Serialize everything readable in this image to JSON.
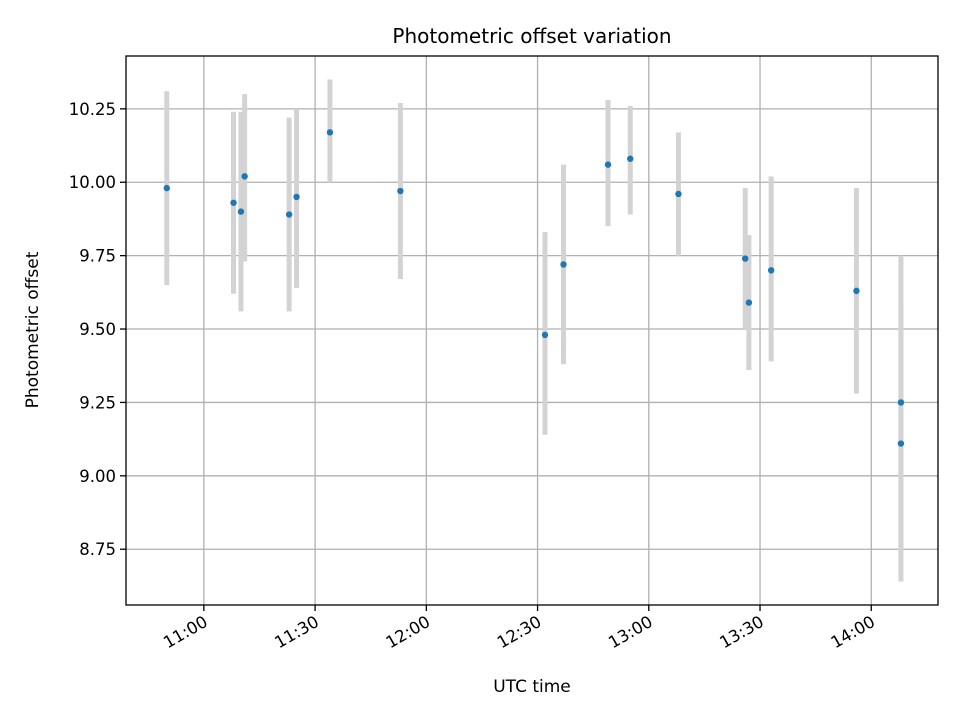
{
  "chart_data": {
    "type": "scatter",
    "title": "Photometric offset variation",
    "xlabel": "UTC time",
    "ylabel": "Photometric offset",
    "x_ticks": [
      "11:00",
      "11:30",
      "12:00",
      "12:30",
      "13:00",
      "13:30",
      "14:00"
    ],
    "y_ticks": [
      "8.75",
      "9.00",
      "9.25",
      "9.50",
      "9.75",
      "10.00",
      "10.25"
    ],
    "xlim": [
      "10:39",
      "14:18"
    ],
    "ylim": [
      8.56,
      10.43
    ],
    "grid": true,
    "colors": {
      "point": "#1f77b4",
      "errorbar": "#d3d3d3",
      "grid": "#b0b0b0"
    },
    "points": [
      {
        "x": "10:50",
        "y": 9.98,
        "ylow": 9.65,
        "yhigh": 10.31
      },
      {
        "x": "11:08",
        "y": 9.93,
        "ylow": 9.62,
        "yhigh": 10.24
      },
      {
        "x": "11:10",
        "y": 9.9,
        "ylow": 9.56,
        "yhigh": 10.24
      },
      {
        "x": "11:11",
        "y": 10.02,
        "ylow": 9.73,
        "yhigh": 10.3
      },
      {
        "x": "11:23",
        "y": 9.89,
        "ylow": 9.56,
        "yhigh": 10.22
      },
      {
        "x": "11:25",
        "y": 9.95,
        "ylow": 9.64,
        "yhigh": 10.25
      },
      {
        "x": "11:34",
        "y": 10.17,
        "ylow": 10.0,
        "yhigh": 10.35
      },
      {
        "x": "11:53",
        "y": 9.97,
        "ylow": 9.67,
        "yhigh": 10.27
      },
      {
        "x": "12:32",
        "y": 9.48,
        "ylow": 9.14,
        "yhigh": 9.83
      },
      {
        "x": "12:37",
        "y": 9.72,
        "ylow": 9.38,
        "yhigh": 10.06
      },
      {
        "x": "12:49",
        "y": 10.06,
        "ylow": 9.85,
        "yhigh": 10.28
      },
      {
        "x": "12:55",
        "y": 10.08,
        "ylow": 9.89,
        "yhigh": 10.26
      },
      {
        "x": "13:08",
        "y": 9.96,
        "ylow": 9.75,
        "yhigh": 10.17
      },
      {
        "x": "13:26",
        "y": 9.74,
        "ylow": 9.5,
        "yhigh": 9.98
      },
      {
        "x": "13:27",
        "y": 9.59,
        "ylow": 9.36,
        "yhigh": 9.82
      },
      {
        "x": "13:33",
        "y": 9.7,
        "ylow": 9.39,
        "yhigh": 10.02
      },
      {
        "x": "13:56",
        "y": 9.63,
        "ylow": 9.28,
        "yhigh": 9.98
      },
      {
        "x": "14:08",
        "y": 9.25,
        "ylow": 8.75,
        "yhigh": 9.75
      },
      {
        "x": "14:08",
        "y": 9.11,
        "ylow": 8.64,
        "yhigh": 9.59
      }
    ]
  }
}
